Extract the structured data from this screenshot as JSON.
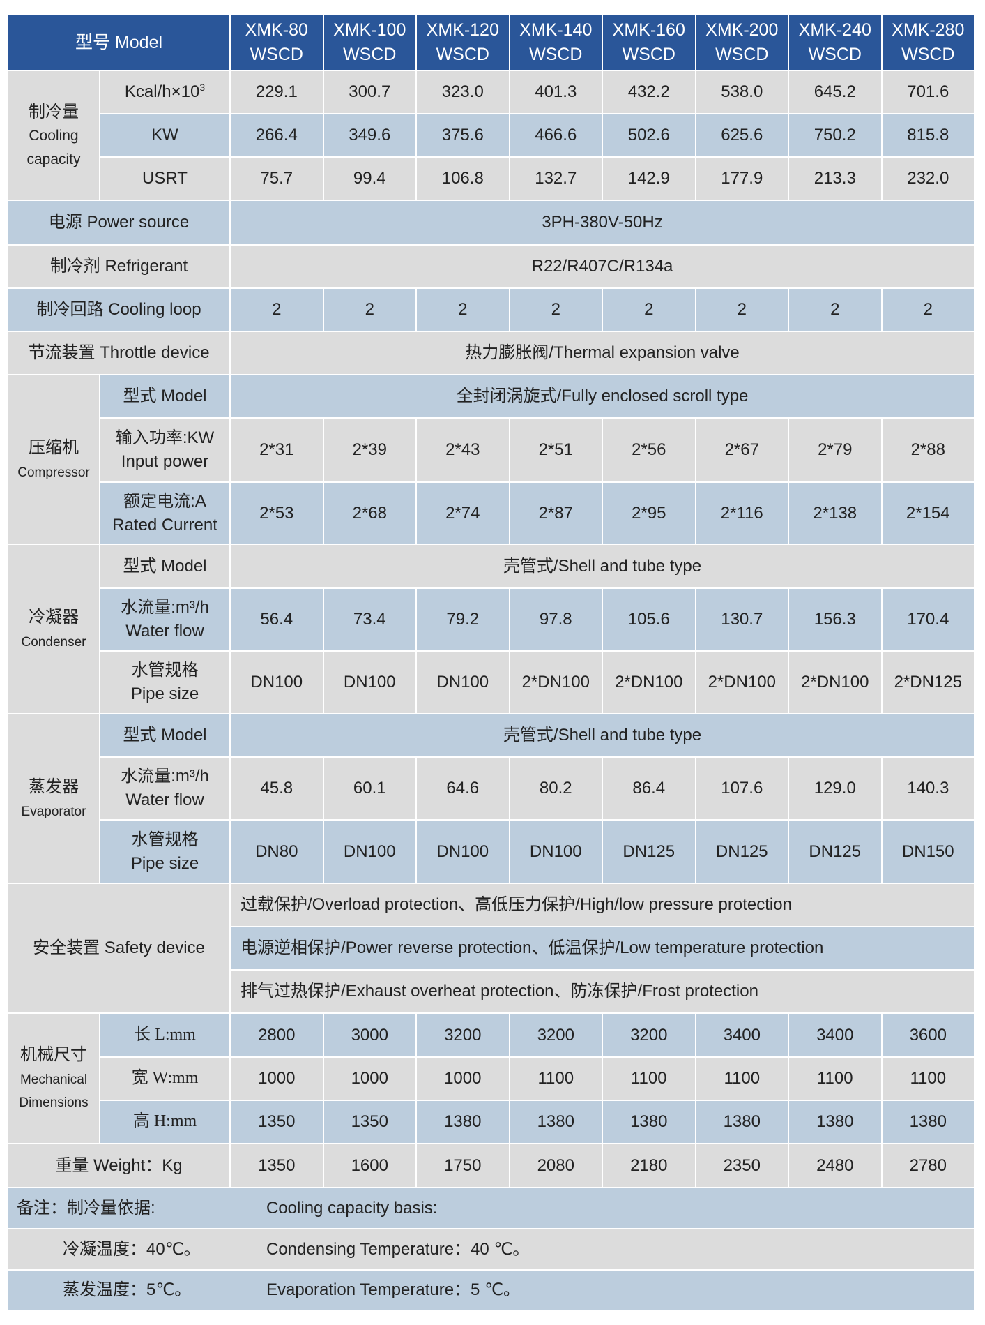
{
  "header": {
    "model_label": "型号 Model",
    "models": [
      [
        "XMK-80",
        "WSCD"
      ],
      [
        "XMK-100",
        "WSCD"
      ],
      [
        "XMK-120",
        "WSCD"
      ],
      [
        "XMK-140",
        "WSCD"
      ],
      [
        "XMK-160",
        "WSCD"
      ],
      [
        "XMK-200",
        "WSCD"
      ],
      [
        "XMK-240",
        "WSCD"
      ],
      [
        "XMK-280",
        "WSCD"
      ]
    ]
  },
  "cooling_capacity": {
    "label_cn": "制冷量",
    "label_en1": "Cooling",
    "label_en2": "capacity",
    "rows": [
      {
        "unit": "Kcal/h×10",
        "unit_sup": "3",
        "values": [
          "229.1",
          "300.7",
          "323.0",
          "401.3",
          "432.2",
          "538.0",
          "645.2",
          "701.6"
        ]
      },
      {
        "unit": "KW",
        "values": [
          "266.4",
          "349.6",
          "375.6",
          "466.6",
          "502.6",
          "625.6",
          "750.2",
          "815.8"
        ]
      },
      {
        "unit": "USRT",
        "values": [
          "75.7",
          "99.4",
          "106.8",
          "132.7",
          "142.9",
          "177.9",
          "213.3",
          "232.0"
        ]
      }
    ]
  },
  "power_source": {
    "label": "电源 Power source",
    "value": "3PH-380V-50Hz"
  },
  "refrigerant": {
    "label": "制冷剂 Refrigerant",
    "value": "R22/R407C/R134a"
  },
  "cooling_loop": {
    "label": "制冷回路 Cooling loop",
    "values": [
      "2",
      "2",
      "2",
      "2",
      "2",
      "2",
      "2",
      "2"
    ]
  },
  "throttle_device": {
    "label": "节流装置 Throttle device",
    "value": "热力膨胀阀/Thermal expansion valve"
  },
  "compressor": {
    "label_cn": "压缩机",
    "label_en": "Compressor",
    "type": {
      "label": "型式 Model",
      "value": "全封闭涡旋式/Fully enclosed scroll type"
    },
    "input_power": {
      "label_cn": "输入功率:KW",
      "label_en": "Input power",
      "values": [
        "2*31",
        "2*39",
        "2*43",
        "2*51",
        "2*56",
        "2*67",
        "2*79",
        "2*88"
      ]
    },
    "rated_current": {
      "label_cn": "额定电流:A",
      "label_en": "Rated Current",
      "values": [
        "2*53",
        "2*68",
        "2*74",
        "2*87",
        "2*95",
        "2*116",
        "2*138",
        "2*154"
      ]
    }
  },
  "condenser": {
    "label_cn": "冷凝器",
    "label_en": "Condenser",
    "type": {
      "label": "型式 Model",
      "value": "壳管式/Shell and tube type"
    },
    "water_flow": {
      "label_cn": "水流量:m³/h",
      "label_en": "Water flow",
      "values": [
        "56.4",
        "73.4",
        "79.2",
        "97.8",
        "105.6",
        "130.7",
        "156.3",
        "170.4"
      ]
    },
    "pipe_size": {
      "label_cn": "水管规格",
      "label_en": "Pipe size",
      "values": [
        "DN100",
        "DN100",
        "DN100",
        "2*DN100",
        "2*DN100",
        "2*DN100",
        "2*DN100",
        "2*DN125"
      ]
    }
  },
  "evaporator": {
    "label_cn": "蒸发器",
    "label_en": "Evaporator",
    "type": {
      "label": "型式 Model",
      "value": "壳管式/Shell and tube type"
    },
    "water_flow": {
      "label_cn": "水流量:m³/h",
      "label_en": "Water flow",
      "values": [
        "45.8",
        "60.1",
        "64.6",
        "80.2",
        "86.4",
        "107.6",
        "129.0",
        "140.3"
      ]
    },
    "pipe_size": {
      "label_cn": "水管规格",
      "label_en": "Pipe size",
      "values": [
        "DN80",
        "DN100",
        "DN100",
        "DN100",
        "DN125",
        "DN125",
        "DN125",
        "DN150"
      ]
    }
  },
  "safety_device": {
    "label": "安全装置 Safety device",
    "lines": [
      "过载保护/Overload protection、高低压力保护/High/low pressure protection",
      "电源逆相保护/Power reverse protection、低温保护/Low temperature protection",
      "排气过热保护/Exhaust overheat protection、防冻保护/Frost protection"
    ]
  },
  "mechanical_dimensions": {
    "label_cn": "机械尺寸",
    "label_en1": "Mechanical",
    "label_en2": "Dimensions",
    "rows": [
      {
        "label": "长 L:mm",
        "values": [
          "2800",
          "3000",
          "3200",
          "3200",
          "3200",
          "3400",
          "3400",
          "3600"
        ]
      },
      {
        "label": "宽 W:mm",
        "values": [
          "1000",
          "1000",
          "1000",
          "1100",
          "1100",
          "1100",
          "1100",
          "1100"
        ]
      },
      {
        "label": "高 H:mm",
        "values": [
          "1350",
          "1350",
          "1380",
          "1380",
          "1380",
          "1380",
          "1380",
          "1380"
        ]
      }
    ]
  },
  "weight": {
    "label": "重量 Weight：Kg",
    "values": [
      "1350",
      "1600",
      "1750",
      "2080",
      "2180",
      "2350",
      "2480",
      "2780"
    ]
  },
  "notes": {
    "rows": [
      {
        "cn": "备注：制冷量依据:",
        "en": "Cooling capacity basis:"
      },
      {
        "cn": "冷凝温度：40℃。",
        "en": "Condensing Temperature：40 ℃。"
      },
      {
        "cn": "蒸发温度：5℃。",
        "en": "Evaporation Temperature：5 ℃。"
      }
    ]
  },
  "colors": {
    "header": "#2a5699",
    "row_gray": "#dcdcdc",
    "row_blue": "#bccddd"
  }
}
